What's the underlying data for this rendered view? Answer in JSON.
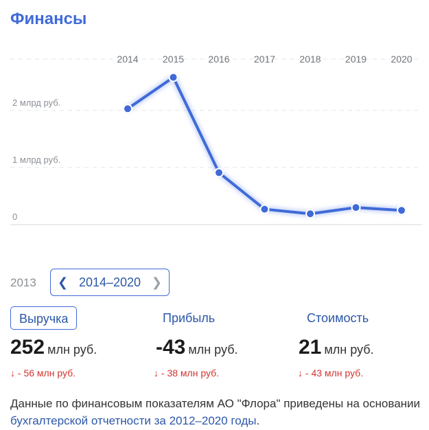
{
  "header": {
    "title": "Финансы"
  },
  "chart_data": {
    "type": "line",
    "title": "",
    "xlabel": "",
    "ylabel": "",
    "x": [
      "2014",
      "2015",
      "2016",
      "2017",
      "2018",
      "2019",
      "2020"
    ],
    "values": [
      2.03,
      2.58,
      0.91,
      0.27,
      0.19,
      0.3,
      0.25
    ],
    "ylim": [
      0,
      2.9
    ],
    "yticks": [
      {
        "value": 0,
        "label": "0"
      },
      {
        "value": 1,
        "label": "1 млрд руб."
      },
      {
        "value": 2,
        "label": "2 млрд руб."
      }
    ],
    "grid": true,
    "legend": "none",
    "line_color": "#3f6ad8"
  },
  "controls": {
    "prev_year": "2013",
    "range_label": "2014–2020",
    "prev_icon": "chevron-left-icon",
    "next_icon": "chevron-right-icon"
  },
  "metrics": [
    {
      "tab": "Выручка",
      "value": "252",
      "unit": "млн руб.",
      "delta": "↓ - 56 млн руб.",
      "active": true
    },
    {
      "tab": "Прибыль",
      "value": "-43",
      "unit": "млн руб.",
      "delta": "↓ - 38 млн руб.",
      "active": false
    },
    {
      "tab": "Стоимость",
      "value": "21",
      "unit": "млн руб.",
      "delta": "↓ - 43 млн руб.",
      "active": false
    }
  ],
  "footer": {
    "text": "Данные по финансовым показателям АО \"Флора\" приведены на основании ",
    "link": "бухгалтерской отчетности за 2012–2020 годы",
    "suffix": "."
  },
  "colors": {
    "accent": "#3f6ad8",
    "link": "#2b57a8",
    "negative": "#d0332f"
  }
}
